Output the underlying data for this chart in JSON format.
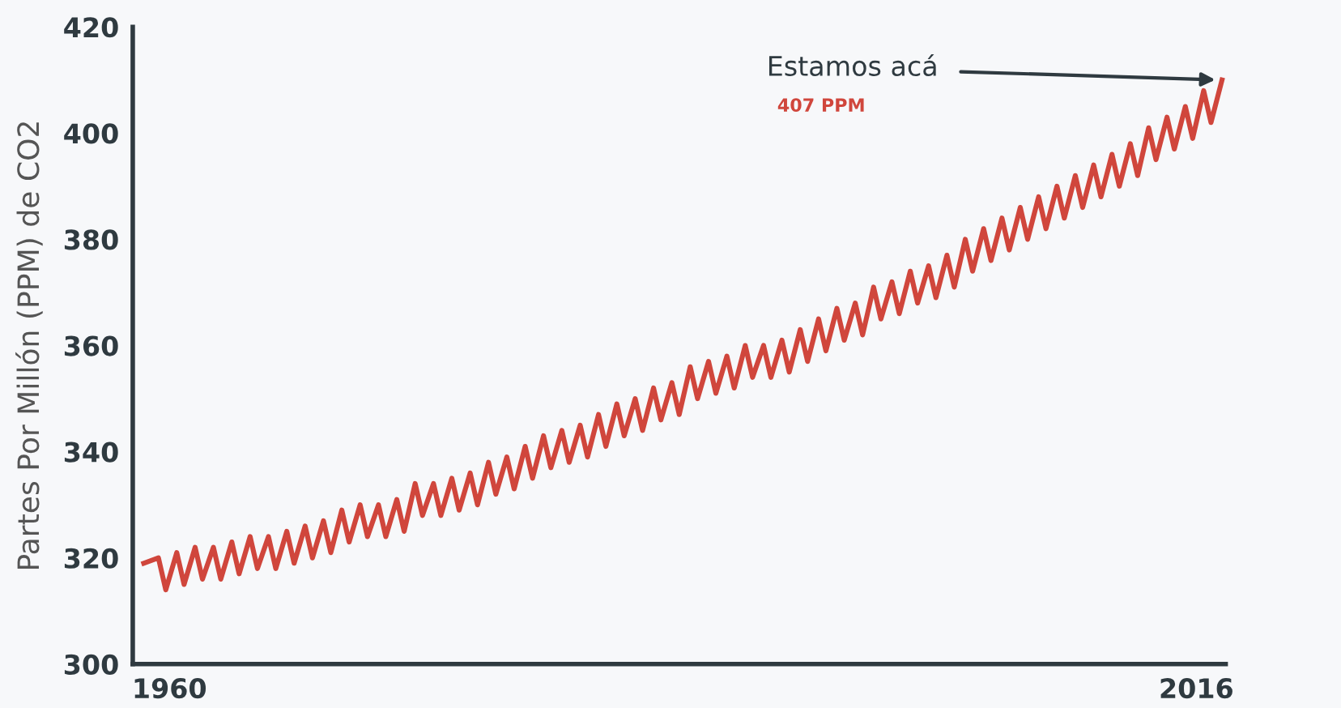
{
  "chart_data": {
    "type": "line",
    "ylabel": "Partes Por Millón (PPM) de CO2",
    "x": [
      1958.6,
      1959.4,
      1959.8,
      1960.4,
      1960.8,
      1961.4,
      1961.8,
      1962.4,
      1962.8,
      1963.4,
      1963.8,
      1964.4,
      1964.8,
      1965.4,
      1965.8,
      1966.4,
      1966.8,
      1967.4,
      1967.8,
      1968.4,
      1968.8,
      1969.4,
      1969.8,
      1970.4,
      1970.8,
      1971.4,
      1971.8,
      1972.4,
      1972.8,
      1973.4,
      1973.8,
      1974.4,
      1974.8,
      1975.4,
      1975.8,
      1976.4,
      1976.8,
      1977.4,
      1977.8,
      1978.4,
      1978.8,
      1979.4,
      1979.8,
      1980.4,
      1980.8,
      1981.4,
      1981.8,
      1982.4,
      1982.8,
      1983.4,
      1983.8,
      1984.4,
      1984.8,
      1985.4,
      1985.8,
      1986.4,
      1986.8,
      1987.4,
      1987.8,
      1988.4,
      1988.8,
      1989.4,
      1989.8,
      1990.4,
      1990.8,
      1991.4,
      1991.8,
      1992.4,
      1992.8,
      1993.4,
      1993.8,
      1994.4,
      1994.8,
      1995.4,
      1995.8,
      1996.4,
      1996.8,
      1997.4,
      1997.8,
      1998.4,
      1998.8,
      1999.4,
      1999.8,
      2000.4,
      2000.8,
      2001.4,
      2001.8,
      2002.4,
      2002.8,
      2003.4,
      2003.8,
      2004.4,
      2004.8,
      2005.4,
      2005.8,
      2006.4,
      2006.8,
      2007.4,
      2007.8,
      2008.4,
      2008.8,
      2009.4,
      2009.8,
      2010.4,
      2010.8,
      2011.4,
      2011.8,
      2012.4,
      2012.8,
      2013.4,
      2013.8,
      2014.4,
      2014.8,
      2015.4,
      2015.8,
      2016.4,
      2016.8,
      2017.4
    ],
    "series": [
      {
        "color": "#d0463c",
        "values": [
          319,
          320,
          314,
          321,
          315,
          322,
          316,
          322,
          316,
          323,
          317,
          324,
          318,
          324,
          318,
          325,
          319,
          326,
          320,
          327,
          321,
          329,
          323,
          330,
          324,
          330,
          324,
          331,
          325,
          334,
          328,
          334,
          328,
          335,
          329,
          336,
          330,
          338,
          332,
          339,
          333,
          341,
          335,
          343,
          337,
          344,
          338,
          345,
          339,
          347,
          341,
          349,
          343,
          350,
          344,
          352,
          346,
          353,
          347,
          356,
          350,
          357,
          351,
          358,
          352,
          360,
          354,
          360,
          354,
          361,
          355,
          363,
          357,
          365,
          359,
          367,
          361,
          368,
          362,
          371,
          365,
          372,
          366,
          374,
          368,
          375,
          369,
          377,
          371,
          380,
          374,
          382,
          376,
          384,
          378,
          386,
          380,
          388,
          382,
          390,
          384,
          392,
          386,
          394,
          388,
          396,
          390,
          398,
          392,
          401,
          395,
          403,
          397,
          405,
          399,
          408,
          402,
          410
        ]
      }
    ],
    "xlim": [
      1958,
      2017.6
    ],
    "xticks": [
      1960,
      2016
    ],
    "ylim": [
      300,
      420
    ],
    "yticks": [
      300,
      320,
      340,
      360,
      380,
      400,
      420
    ],
    "grid": false,
    "legend": false,
    "marker": "none",
    "line_style": "solid",
    "annotations": [
      {
        "text": "Estamos acá",
        "x": 2017.4,
        "y": 410
      },
      "407 PPM"
    ]
  }
}
